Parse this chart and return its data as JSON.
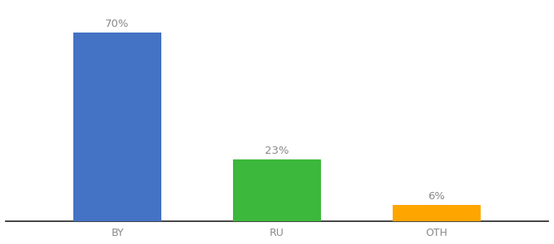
{
  "categories": [
    "BY",
    "RU",
    "OTH"
  ],
  "values": [
    70,
    23,
    6
  ],
  "bar_colors": [
    "#4472C4",
    "#3CB83C",
    "#FFA500"
  ],
  "label_fontsize": 9.5,
  "tick_fontsize": 9,
  "label_color": "#888888",
  "ylim": [
    0,
    80
  ],
  "background_color": "#ffffff",
  "bar_width": 0.55
}
